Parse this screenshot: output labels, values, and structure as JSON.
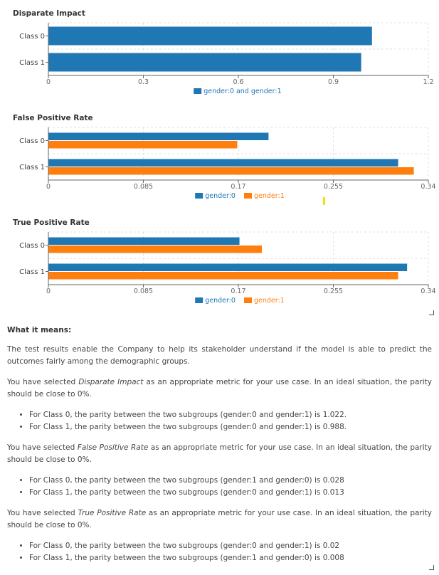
{
  "chart_data": [
    {
      "type": "bar",
      "orientation": "horizontal",
      "title": "Disparate Impact",
      "categories": [
        "Class 0",
        "Class 1"
      ],
      "series": [
        {
          "name": "gender:0 and gender:1",
          "color": "#1f77b4",
          "values": [
            1.022,
            0.988
          ]
        }
      ],
      "xlim": [
        0,
        1.2
      ],
      "xticks": [
        "0",
        "0.3",
        "0.6",
        "0.9",
        "1.2"
      ],
      "grid": true,
      "legend": "bottom"
    },
    {
      "type": "bar",
      "orientation": "horizontal",
      "title": "False Positive Rate",
      "categories": [
        "Class 0",
        "Class 1"
      ],
      "series": [
        {
          "name": "gender:0",
          "color": "#1f77b4",
          "values": [
            0.197,
            0.313
          ]
        },
        {
          "name": "gender:1",
          "color": "#ff7f0e",
          "values": [
            0.169,
            0.327
          ]
        }
      ],
      "xlim": [
        0,
        0.34
      ],
      "xticks": [
        "0",
        "0.085",
        "0.17",
        "0.255",
        "0.34"
      ],
      "grid": true,
      "legend": "bottom"
    },
    {
      "type": "bar",
      "orientation": "horizontal",
      "title": "True Positive Rate",
      "categories": [
        "Class 0",
        "Class 1"
      ],
      "series": [
        {
          "name": "gender:0",
          "color": "#1f77b4",
          "values": [
            0.171,
            0.321
          ]
        },
        {
          "name": "gender:1",
          "color": "#ff7f0e",
          "values": [
            0.191,
            0.313
          ]
        }
      ],
      "xlim": [
        0,
        0.34
      ],
      "xticks": [
        "0",
        "0.085",
        "0.17",
        "0.255",
        "0.34"
      ],
      "grid": true,
      "legend": "bottom"
    }
  ],
  "explanation": {
    "heading": "What it means:",
    "intro": "The test results enable the Company to help its stakeholder understand if the model is able to predict the outcomes fairly among the demographic groups.",
    "sections": [
      {
        "prefix": "You have selected ",
        "metric": "Disparate Impact",
        "suffix": " as an appropriate metric for your use case. In an ideal situation, the parity should be close to 0%.",
        "bullets": [
          "For Class 0, the parity between the two subgroups (gender:0 and gender:1) is 1.022.",
          "For Class 1, the parity between the two subgroups (gender:0 and gender:1) is 0.988."
        ]
      },
      {
        "prefix": "You have selected ",
        "metric": "False Positive Rate",
        "suffix": " as an appropriate metric for your use case. In an ideal situation, the parity should be close to 0%.",
        "bullets": [
          "For Class 0, the parity between the two subgroups (gender:1 and gender:0) is 0.028",
          "For Class 1, the parity between the two subgroups (gender:0 and gender:1) is 0.013"
        ]
      },
      {
        "prefix": "You have selected ",
        "metric": "True Positive Rate",
        "suffix": " as an appropriate metric for your use case. In an ideal situation, the parity should be close to 0%.",
        "bullets": [
          "For Class 0, the parity between the two subgroups (gender:0 and gender:1) is 0.02",
          "For Class 1, the parity between the two subgroups (gender:1 and gender:0) is 0.008"
        ]
      }
    ]
  }
}
